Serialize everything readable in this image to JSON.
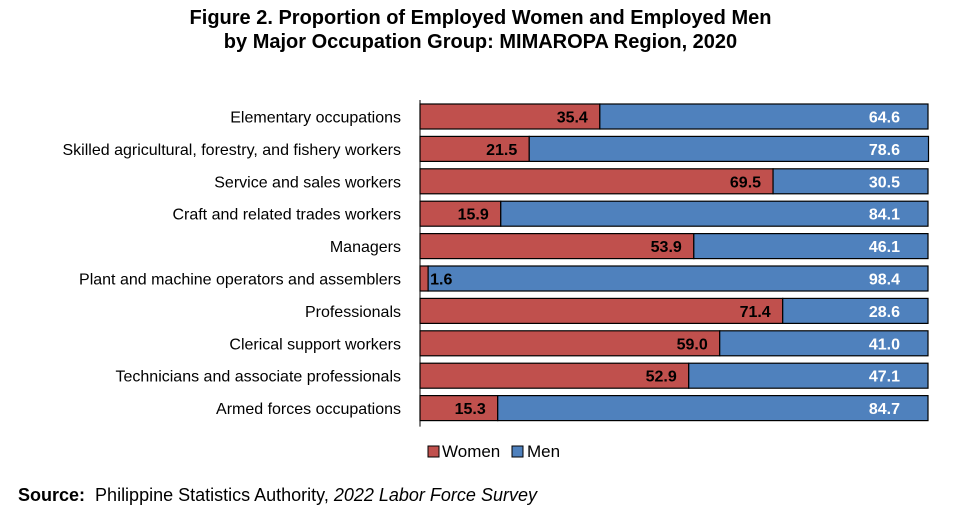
{
  "chart_data": {
    "type": "bar",
    "orientation": "horizontal",
    "stacked": true,
    "title_line1": "Figure 2. Proportion of Employed Women and Employed Men",
    "title_line2": "by Major Occupation Group: MIMAROPA Region, 2020",
    "categories": [
      "Elementary occupations",
      "Skilled agricultural, forestry, and fishery workers",
      "Service and sales workers",
      "Craft and related trades workers",
      "Managers",
      "Plant and machine operators and assemblers",
      "Professionals",
      "Clerical support workers",
      "Technicians and associate professionals",
      "Armed forces occupations"
    ],
    "series": [
      {
        "name": "Women",
        "color": "#C0504D",
        "values": [
          35.4,
          21.5,
          69.5,
          15.9,
          53.9,
          1.6,
          71.4,
          59.0,
          52.9,
          15.3
        ]
      },
      {
        "name": "Men",
        "color": "#4F81BD",
        "values": [
          64.6,
          78.6,
          30.5,
          84.1,
          46.1,
          98.4,
          28.6,
          41.0,
          47.1,
          84.7
        ]
      }
    ],
    "xlim": [
      0,
      100
    ],
    "grid": false,
    "legend_position": "bottom-center"
  },
  "source": {
    "label": "Source:",
    "agency": "Philippine Statistics Authority,",
    "publication": "2022 Labor Force Survey"
  }
}
